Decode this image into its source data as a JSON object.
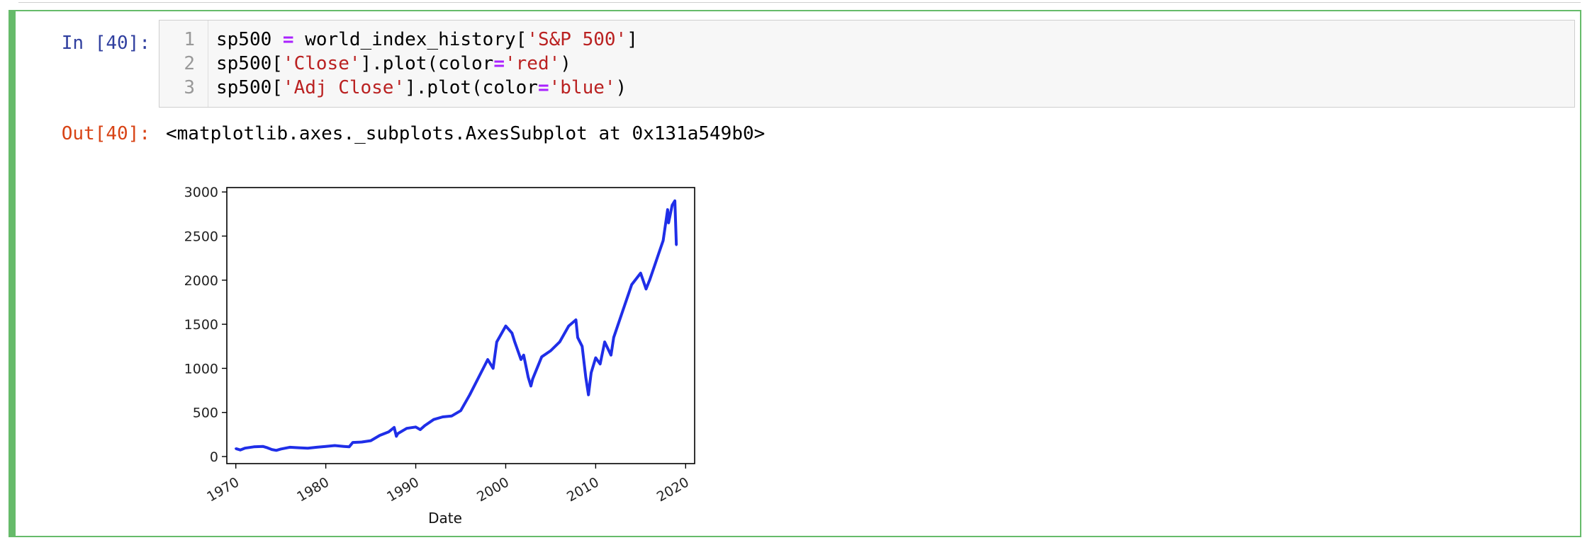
{
  "input_prompt": "In [40]:",
  "output_prompt": "Out[40]:",
  "code_lines": [
    {
      "number": "1",
      "parts": [
        {
          "t": "sp500 ",
          "c": ""
        },
        {
          "t": "=",
          "c": "op"
        },
        {
          "t": " world_index_history[",
          "c": ""
        },
        {
          "t": "'S&P 500'",
          "c": "str"
        },
        {
          "t": "]",
          "c": ""
        }
      ]
    },
    {
      "number": "2",
      "parts": [
        {
          "t": "sp500[",
          "c": ""
        },
        {
          "t": "'Close'",
          "c": "str"
        },
        {
          "t": "].plot(color",
          "c": ""
        },
        {
          "t": "=",
          "c": "op"
        },
        {
          "t": "'red'",
          "c": "str"
        },
        {
          "t": ")",
          "c": ""
        }
      ]
    },
    {
      "number": "3",
      "parts": [
        {
          "t": "sp500[",
          "c": ""
        },
        {
          "t": "'Adj Close'",
          "c": "str"
        },
        {
          "t": "].plot(color",
          "c": ""
        },
        {
          "t": "=",
          "c": "op"
        },
        {
          "t": "'blue'",
          "c": "str"
        },
        {
          "t": ")",
          "c": ""
        }
      ]
    }
  ],
  "output_text": "<matplotlib.axes._subplots.AxesSubplot at 0x131a549b0>",
  "colors": {
    "cell_border": "#66bb6a",
    "line": "#1f2ee8",
    "in_prompt": "#303f9f",
    "out_prompt": "#d84315"
  },
  "chart_data": {
    "type": "line",
    "xlabel": "Date",
    "ylabel": "",
    "title": "",
    "xlim": [
      1969,
      2021
    ],
    "ylim": [
      -80,
      3050
    ],
    "x_ticks": [
      1970,
      1980,
      1990,
      2000,
      2010,
      2020
    ],
    "y_ticks": [
      0,
      500,
      1000,
      1500,
      2000,
      2500,
      3000
    ],
    "x_tick_labels": [
      "1970",
      "1980",
      "1990",
      "2000",
      "2010",
      "2020"
    ],
    "y_tick_labels": [
      "0",
      "500",
      "1000",
      "1500",
      "2000",
      "2500",
      "3000"
    ],
    "series": [
      {
        "color": "blue",
        "x": [
          1970.0,
          1970.5,
          1971.0,
          1972.0,
          1973.0,
          1973.5,
          1974.0,
          1974.5,
          1975.0,
          1976.0,
          1977.0,
          1978.0,
          1979.0,
          1980.0,
          1981.0,
          1982.0,
          1982.6,
          1983.0,
          1984.0,
          1985.0,
          1986.0,
          1987.0,
          1987.6,
          1987.85,
          1988.0,
          1989.0,
          1990.0,
          1990.5,
          1991.0,
          1992.0,
          1993.0,
          1994.0,
          1995.0,
          1996.0,
          1997.0,
          1998.0,
          1998.6,
          1999.0,
          2000.0,
          2000.7,
          2001.0,
          2001.7,
          2002.0,
          2002.5,
          2002.8,
          2003.0,
          2004.0,
          2005.0,
          2006.0,
          2007.0,
          2007.8,
          2008.0,
          2008.5,
          2008.9,
          2009.2,
          2009.5,
          2010.0,
          2010.5,
          2011.0,
          2011.7,
          2012.0,
          2013.0,
          2014.0,
          2015.0,
          2015.6,
          2016.0,
          2016.5,
          2017.0,
          2017.5,
          2018.0,
          2018.1,
          2018.5,
          2018.8,
          2018.97
        ],
        "y": [
          90,
          75,
          95,
          110,
          115,
          100,
          80,
          70,
          85,
          105,
          100,
          95,
          105,
          115,
          125,
          115,
          110,
          160,
          165,
          180,
          240,
          280,
          330,
          230,
          260,
          320,
          335,
          305,
          350,
          420,
          450,
          460,
          520,
          700,
          900,
          1100,
          1000,
          1300,
          1480,
          1400,
          1300,
          1100,
          1150,
          900,
          800,
          880,
          1130,
          1200,
          1300,
          1480,
          1550,
          1350,
          1250,
          900,
          700,
          950,
          1120,
          1050,
          1300,
          1150,
          1350,
          1650,
          1950,
          2080,
          1900,
          2000,
          2150,
          2300,
          2450,
          2800,
          2650,
          2850,
          2900,
          2400
        ]
      }
    ]
  }
}
